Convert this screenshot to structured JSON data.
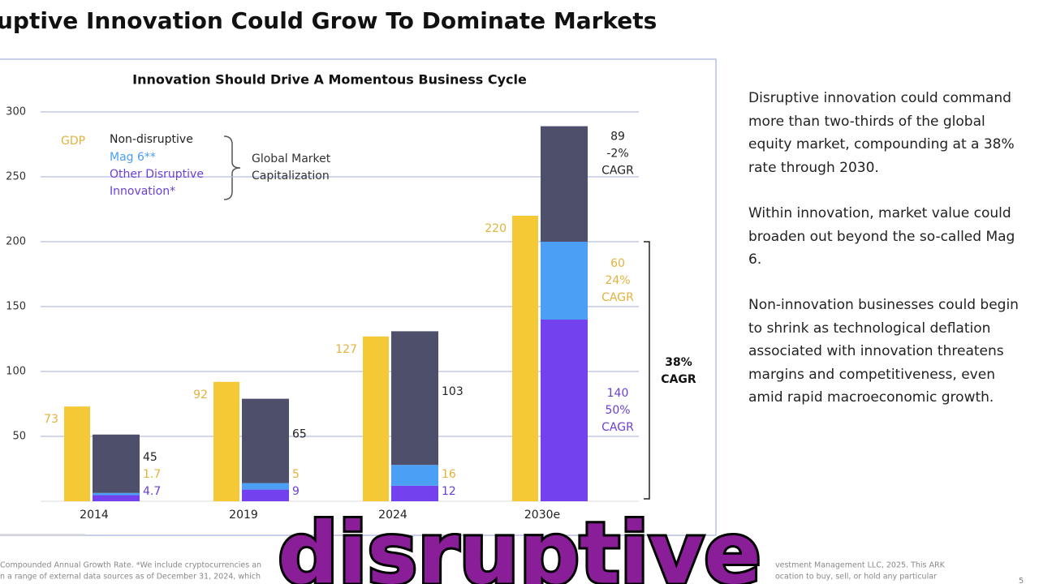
{
  "header": {
    "title": "uptive Innovation Could Grow To Dominate Markets"
  },
  "chart_data": {
    "type": "bar",
    "title": "Innovation Should Drive A Momentous Business Cycle",
    "categories": [
      "2014",
      "2019",
      "2024",
      "2030e"
    ],
    "series": [
      {
        "name": "GDP",
        "color": "#f4c935",
        "label_color": "#e2b23c",
        "values": [
          73,
          92,
          127,
          220
        ]
      },
      {
        "name": "Other Disruptive Innovation*",
        "color": "#7341ee",
        "label_color": "#6a3fd8",
        "values": [
          4.7,
          9,
          12,
          140
        ],
        "growth": "50%"
      },
      {
        "name": "Mag 6**",
        "color": "#4b9ff4",
        "label_color": "#e2b23c",
        "values": [
          1.7,
          5,
          16,
          60
        ],
        "growth": "24%"
      },
      {
        "name": "Non-disruptive",
        "color": "#4e4f6b",
        "label_color": "#222222",
        "values": [
          45,
          65,
          103,
          89
        ],
        "growth": "-2%"
      }
    ],
    "growth_unit": "CAGR",
    "total_growth": "38%",
    "bracket_label": "Global Market Capitalization",
    "ylim": [
      0,
      300
    ],
    "yticks": [
      50,
      100,
      150,
      200,
      250,
      300
    ],
    "grid": true
  },
  "side_text": [
    "Disruptive innovation could command more than two-thirds of the global equity market, compounding at a 38% rate through 2030.",
    "Within innovation, market value could broaden out beyond the so-called Mag 6.",
    "Non-innovation businesses could begin to shrink as technological deflation associated with innovation threatens margins and competitiveness, even amid rapid macroeconomic growth."
  ],
  "footnotes": [
    "Compounded Annual Growth Rate. *We include cryptocurrencies an",
    "n a range of external data sources as of December 31, 2024, which",
    "vestment Management LLC, 2025. This ARK",
    "ocation to buy, sell, or hold any particular"
  ],
  "caption": "disruptive",
  "page_number": "5"
}
